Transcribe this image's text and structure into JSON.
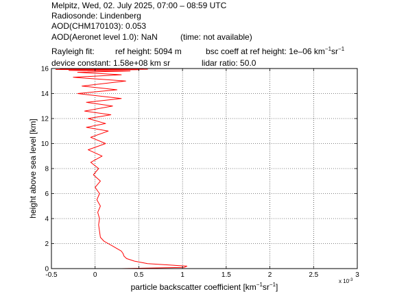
{
  "header": {
    "line1": "Melpitz, Wed, 02. July 2025, 07:00 – 08:59 UTC",
    "line2": "Radiosonde: Lindenberg",
    "line3": "AOD(CHM170103): 0.053",
    "line4_label": "AOD(Aeronet level 1.0): NaN",
    "line4_note": "(time: not available)",
    "line5_fit": "Rayleigh fit:",
    "line5_refheight": "ref height: 5094 m",
    "line5_bsc_prefix": "bsc coeff at ref height: 1e–06 km",
    "line5_bsc_exp1": "−1",
    "line5_bsc_mid": "sr",
    "line5_bsc_exp2": "−1",
    "line6_constant": "device constant: 1.58e+08 km sr",
    "line6_ratio": "lidar ratio: 50.0"
  },
  "colors": {
    "profile": "#ff0000",
    "axes": "#000000",
    "grid": "#000000",
    "background": "#ffffff"
  },
  "chart_data": {
    "type": "line",
    "xlabel_prefix": "particle backscatter coefficient [km",
    "xlabel_exp1": "−1",
    "xlabel_mid": "sr",
    "xlabel_exp2": "−1",
    "xlabel_suffix": "]",
    "ylabel": "height above sea level [km]",
    "x_multiplier_base": "x 10",
    "x_multiplier_exp": "-3",
    "xlim": [
      -0.5,
      3
    ],
    "ylim": [
      0,
      16
    ],
    "xticks": [
      -0.5,
      0,
      0.5,
      1,
      1.5,
      2,
      2.5,
      3
    ],
    "xtick_labels": [
      "-0.5",
      "0",
      "0.5",
      "1",
      "1.5",
      "2",
      "2.5",
      "3"
    ],
    "yticks": [
      0,
      2,
      4,
      6,
      8,
      10,
      12,
      14,
      16
    ],
    "ytick_labels": [
      "0",
      "2",
      "4",
      "6",
      "8",
      "10",
      "12",
      "14",
      "16"
    ],
    "grid": true,
    "series": [
      {
        "x": [
          0.3,
          1.02,
          1.05,
          0.6,
          0.45,
          0.36,
          0.33,
          0.32,
          0.3,
          0.25,
          0.2,
          0.15,
          0.1,
          0.06,
          0.05,
          0.04,
          0.05,
          0.03,
          0.06,
          0.02,
          0.05,
          0.0,
          0.06,
          -0.02,
          0.04,
          -0.05,
          0.08,
          -0.08,
          0.12,
          -0.05,
          0.15,
          -0.1,
          0.12,
          -0.08,
          0.18,
          -0.12,
          0.2,
          -0.1,
          0.3,
          -0.2,
          0.25,
          -0.15,
          0.35,
          -0.25,
          0.3,
          -0.2,
          0.4,
          -0.3,
          0.5,
          -0.45,
          0.6,
          -0.3,
          0.55,
          -0.4,
          0.45,
          -0.35,
          0.5,
          -0.4,
          0.55,
          -0.45,
          0.45,
          -0.3
        ],
        "y": [
          0.0,
          0.1,
          0.2,
          0.4,
          0.6,
          0.8,
          1.0,
          1.2,
          1.4,
          1.6,
          1.8,
          2.0,
          2.2,
          2.5,
          3.0,
          3.5,
          4.0,
          4.5,
          5.0,
          5.5,
          6.0,
          6.5,
          7.0,
          7.5,
          8.0,
          8.5,
          9.0,
          9.5,
          10.0,
          10.5,
          11.0,
          11.3,
          11.6,
          12.0,
          12.3,
          12.6,
          13.0,
          13.3,
          13.6,
          14.0,
          14.3,
          14.6,
          15.0,
          15.3,
          15.5,
          15.7,
          15.8,
          15.85,
          15.9,
          15.92,
          15.94,
          15.95,
          15.96,
          15.97,
          15.975,
          15.98,
          15.985,
          15.99,
          15.993,
          15.996,
          15.998,
          16.0
        ]
      }
    ]
  }
}
